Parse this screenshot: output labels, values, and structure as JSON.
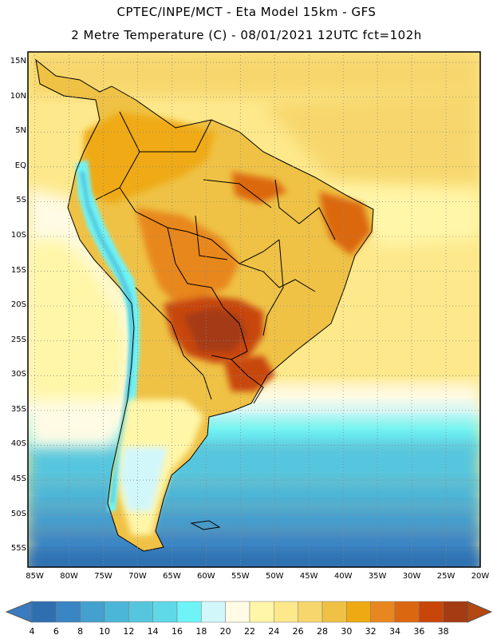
{
  "title_line1": "CPTEC/INPE/MCT -  Eta Model 15km - GFS",
  "title_line2": "2 Metre Temperature (C) - 08/01/2021 12UTC fct=102h",
  "lat_labels": [
    "15N",
    "10N",
    "5N",
    "EQ",
    "5S",
    "10S",
    "15S",
    "20S",
    "25S",
    "30S",
    "35S",
    "40S",
    "45S",
    "50S",
    "55S"
  ],
  "lon_labels": [
    "85W",
    "80W",
    "75W",
    "70W",
    "65W",
    "60W",
    "55W",
    "50W",
    "45W",
    "40W",
    "35W",
    "30W",
    "25W",
    "20W"
  ],
  "colorbar": {
    "ticks": [
      "4",
      "6",
      "8",
      "10",
      "12",
      "14",
      "16",
      "18",
      "20",
      "22",
      "24",
      "26",
      "28",
      "30",
      "32",
      "34",
      "36",
      "38"
    ],
    "colors": [
      "#2f6fb0",
      "#3a85c4",
      "#44a0cf",
      "#4cb6d8",
      "#56c6de",
      "#5fd9e8",
      "#6ef4f6",
      "#d2f7fb",
      "#fffbe4",
      "#fff6a8",
      "#fde88b",
      "#f7d76d",
      "#efc245",
      "#efaa13",
      "#e8871f",
      "#dc6711",
      "#c8460a",
      "#a53b12"
    ],
    "under_color": "#3a7bc0",
    "over_color": "#b54710"
  },
  "grid": {
    "lat_min": -57.5,
    "lat_max": 16.5,
    "lon_min": -86,
    "lon_max": -20
  }
}
